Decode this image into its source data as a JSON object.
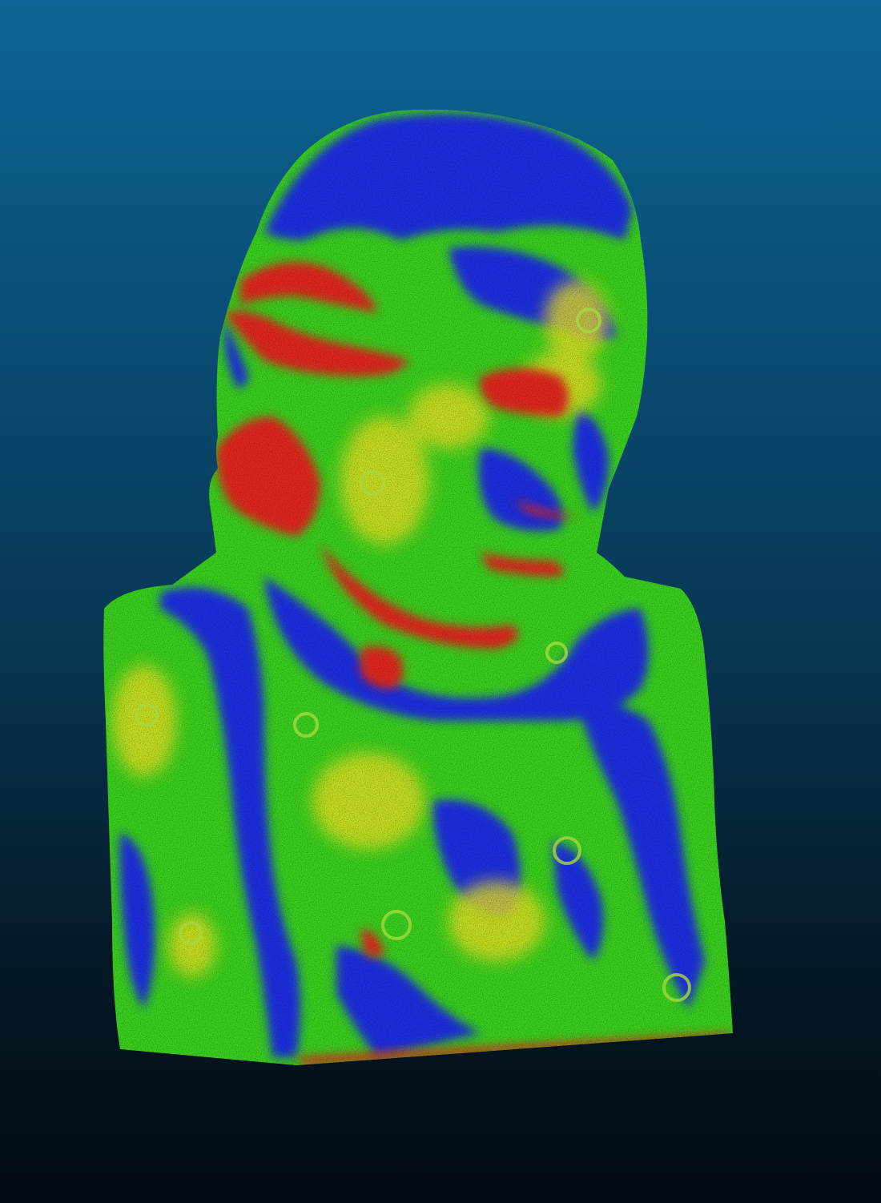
{
  "viewer": {
    "background_top": "#0c6596",
    "background_bottom": "#010b12",
    "color_scale": [
      "#1a2ee0",
      "#33e01a",
      "#f2e01a",
      "#e0281a"
    ],
    "icons": {
      "model": "bust-point-cloud-icon"
    }
  }
}
